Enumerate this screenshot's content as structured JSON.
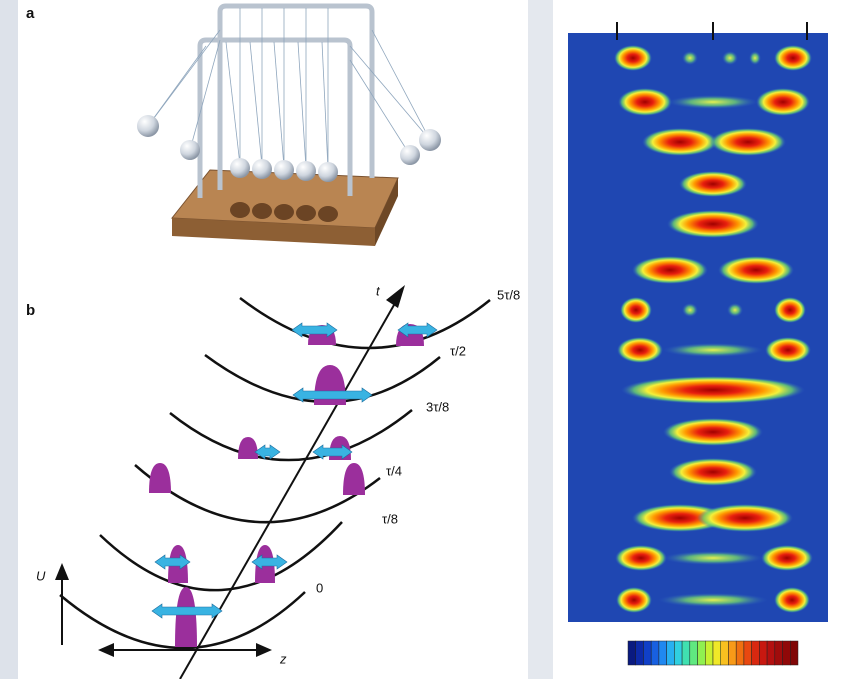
{
  "panels": {
    "a": {
      "label": "a"
    },
    "b": {
      "label": "b",
      "time_axis": "t",
      "potential_axis": "U",
      "position_axis": "z",
      "curve_labels": [
        "5τ/8",
        "τ/2",
        "3τ/8",
        "τ/4",
        "τ/8",
        "0"
      ]
    }
  }
}
